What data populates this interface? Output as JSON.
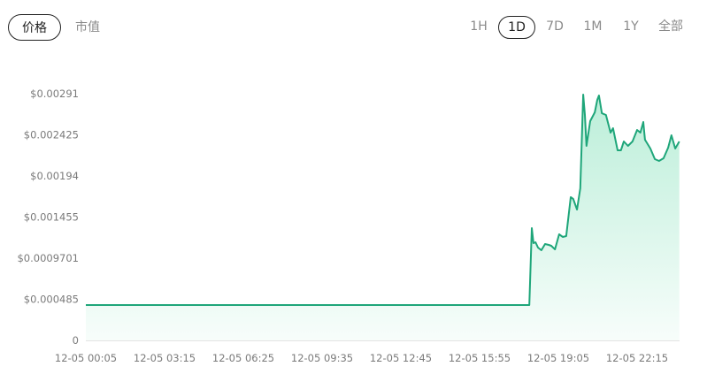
{
  "metric_tabs": [
    {
      "label": "价格",
      "active": true
    },
    {
      "label": "市值",
      "active": false
    }
  ],
  "range_tabs": [
    {
      "label": "1H",
      "active": false
    },
    {
      "label": "1D",
      "active": true
    },
    {
      "label": "7D",
      "active": false
    },
    {
      "label": "1M",
      "active": false
    },
    {
      "label": "1Y",
      "active": false
    },
    {
      "label": "全部",
      "active": false
    }
  ],
  "chart_data": {
    "type": "area",
    "title": "",
    "xlabel": "",
    "ylabel": "",
    "line_color": "#1fa67a",
    "fill_color": "#3ccf91",
    "grid": false,
    "ylim": [
      0,
      0.00291
    ],
    "y_ticks": [
      {
        "value": 0,
        "label": "0"
      },
      {
        "value": 0.000485,
        "label": "$0.000485"
      },
      {
        "value": 0.0009701,
        "label": "$0.0009701"
      },
      {
        "value": 0.001455,
        "label": "$0.001455"
      },
      {
        "value": 0.00194,
        "label": "$0.00194"
      },
      {
        "value": 0.002425,
        "label": "$0.002425"
      },
      {
        "value": 0.00291,
        "label": "$0.00291"
      }
    ],
    "x_ticks": [
      "12-05 00:05",
      "12-05 03:15",
      "12-05 06:25",
      "12-05 09:35",
      "12-05 12:45",
      "12-05 15:55",
      "12-05 19:05",
      "12-05 22:15"
    ],
    "points": [
      [
        "00:05",
        0.000417
      ],
      [
        "17:55",
        0.000417
      ],
      [
        "18:01",
        0.001325
      ],
      [
        "18:05",
        0.001147
      ],
      [
        "18:10",
        0.001158
      ],
      [
        "18:16",
        0.001095
      ],
      [
        "18:24",
        0.001064
      ],
      [
        "18:33",
        0.001137
      ],
      [
        "18:42",
        0.001126
      ],
      [
        "18:48",
        0.001116
      ],
      [
        "18:57",
        0.001074
      ],
      [
        "19:07",
        0.001252
      ],
      [
        "19:16",
        0.00122
      ],
      [
        "19:24",
        0.001231
      ],
      [
        "19:35",
        0.00169
      ],
      [
        "19:41",
        0.001669
      ],
      [
        "19:50",
        0.001544
      ],
      [
        "19:58",
        0.001794
      ],
      [
        "20:05",
        0.0029
      ],
      [
        "20:09",
        0.00266
      ],
      [
        "20:13",
        0.002295
      ],
      [
        "20:22",
        0.002587
      ],
      [
        "20:33",
        0.002691
      ],
      [
        "20:39",
        0.002837
      ],
      [
        "20:43",
        0.002889
      ],
      [
        "20:50",
        0.00268
      ],
      [
        "21:00",
        0.00266
      ],
      [
        "21:11",
        0.002451
      ],
      [
        "21:17",
        0.002503
      ],
      [
        "21:28",
        0.002242
      ],
      [
        "21:36",
        0.002242
      ],
      [
        "21:43",
        0.002347
      ],
      [
        "21:53",
        0.002295
      ],
      [
        "22:04",
        0.002347
      ],
      [
        "22:15",
        0.002482
      ],
      [
        "22:23",
        0.002451
      ],
      [
        "22:30",
        0.002576
      ],
      [
        "22:34",
        0.002368
      ],
      [
        "22:47",
        0.002263
      ],
      [
        "22:58",
        0.002138
      ],
      [
        "23:08",
        0.002117
      ],
      [
        "23:19",
        0.002149
      ],
      [
        "23:30",
        0.002274
      ],
      [
        "23:38",
        0.00242
      ],
      [
        "23:47",
        0.002263
      ],
      [
        "23:57",
        0.002347
      ]
    ]
  }
}
